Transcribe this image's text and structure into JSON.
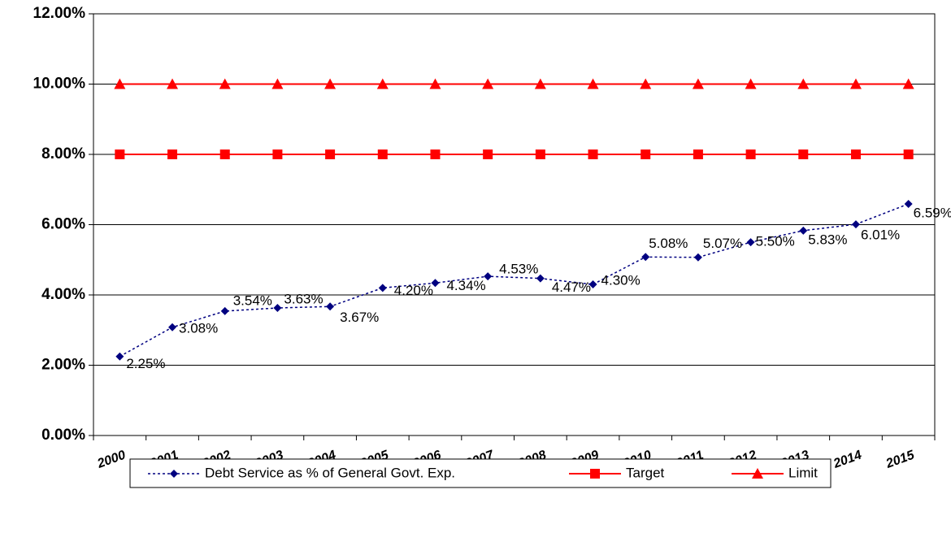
{
  "chart_data": {
    "type": "line",
    "categories": [
      "2000",
      "2001",
      "2002",
      "2003",
      "2004",
      "2005",
      "2006",
      "2007",
      "2008",
      "2009",
      "2010",
      "2011",
      "2012",
      "2013",
      "2014",
      "2015"
    ],
    "series": [
      {
        "name": "Debt Service as % of General Govt. Exp.",
        "color": "#000080",
        "marker": "diamond",
        "dashed": true,
        "values": [
          2.25,
          3.08,
          3.54,
          3.63,
          3.67,
          4.2,
          4.34,
          4.53,
          4.47,
          4.3,
          5.08,
          5.07,
          5.5,
          5.83,
          6.01,
          6.59
        ],
        "value_labels": [
          "2.25%",
          "3.08%",
          "3.54%",
          "3.63%",
          "3.67%",
          "4.20%",
          "4.34%",
          "4.53%",
          "4.47%",
          "4.30%",
          "5.08%",
          "5.07%",
          "5.50%",
          "5.83%",
          "6.01%",
          "6.59%"
        ]
      },
      {
        "name": "Target",
        "color": "#ff0000",
        "marker": "square",
        "dashed": false,
        "values": [
          8,
          8,
          8,
          8,
          8,
          8,
          8,
          8,
          8,
          8,
          8,
          8,
          8,
          8,
          8,
          8
        ]
      },
      {
        "name": "Limit",
        "color": "#ff0000",
        "marker": "triangle",
        "dashed": false,
        "values": [
          10,
          10,
          10,
          10,
          10,
          10,
          10,
          10,
          10,
          10,
          10,
          10,
          10,
          10,
          10,
          10
        ]
      }
    ],
    "ylim": [
      0,
      12
    ],
    "yticks": [
      {
        "value": 0,
        "label": "0.00%"
      },
      {
        "value": 2,
        "label": "2.00%"
      },
      {
        "value": 4,
        "label": "4.00%"
      },
      {
        "value": 6,
        "label": "6.00%"
      },
      {
        "value": 8,
        "label": "8.00%"
      },
      {
        "value": 10,
        "label": "10.00%"
      },
      {
        "value": 12,
        "label": "12.00%"
      }
    ],
    "grid": true,
    "legend": "bottom"
  }
}
